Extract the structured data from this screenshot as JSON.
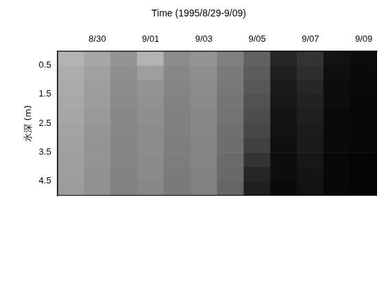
{
  "chart_data": {
    "type": "heatmap",
    "title": "Time (1995/8/29-9/09)",
    "y_label": "水深 (m)",
    "categories": [
      null,
      "8/30",
      null,
      "9/01",
      null,
      "9/03",
      null,
      "9/05",
      null,
      "9/07",
      null,
      "9/09"
    ],
    "depth_bins": [
      0,
      0.5,
      1,
      1.5,
      2,
      2.5,
      3,
      3.5,
      4,
      4.5,
      5
    ],
    "values": [
      [
        0.3,
        0.35,
        0.42,
        0.3,
        0.45,
        0.42,
        0.5,
        0.62,
        0.85,
        0.8,
        0.93,
        0.95
      ],
      [
        0.32,
        0.37,
        0.44,
        0.38,
        0.47,
        0.44,
        0.52,
        0.64,
        0.88,
        0.82,
        0.94,
        0.96
      ],
      [
        0.33,
        0.38,
        0.45,
        0.42,
        0.48,
        0.45,
        0.53,
        0.66,
        0.9,
        0.85,
        0.95,
        0.96
      ],
      [
        0.34,
        0.39,
        0.46,
        0.43,
        0.49,
        0.46,
        0.54,
        0.68,
        0.91,
        0.87,
        0.95,
        0.97
      ],
      [
        0.35,
        0.4,
        0.47,
        0.44,
        0.5,
        0.47,
        0.55,
        0.7,
        0.92,
        0.88,
        0.96,
        0.97
      ],
      [
        0.36,
        0.41,
        0.47,
        0.45,
        0.5,
        0.47,
        0.56,
        0.72,
        0.93,
        0.89,
        0.96,
        0.97
      ],
      [
        0.37,
        0.42,
        0.48,
        0.45,
        0.51,
        0.48,
        0.57,
        0.75,
        0.94,
        0.9,
        0.96,
        0.97
      ],
      [
        0.38,
        0.42,
        0.48,
        0.46,
        0.51,
        0.48,
        0.58,
        0.8,
        0.95,
        0.91,
        0.97,
        0.98
      ],
      [
        0.38,
        0.43,
        0.49,
        0.46,
        0.52,
        0.49,
        0.59,
        0.85,
        0.95,
        0.92,
        0.97,
        0.98
      ],
      [
        0.39,
        0.43,
        0.49,
        0.47,
        0.52,
        0.49,
        0.6,
        0.88,
        0.96,
        0.93,
        0.97,
        0.98
      ]
    ],
    "ylim": [
      0,
      5
    ],
    "yticks": [
      0.5,
      1.5,
      2.5,
      3.5,
      4.5
    ],
    "grid": false,
    "color": "#000000"
  }
}
